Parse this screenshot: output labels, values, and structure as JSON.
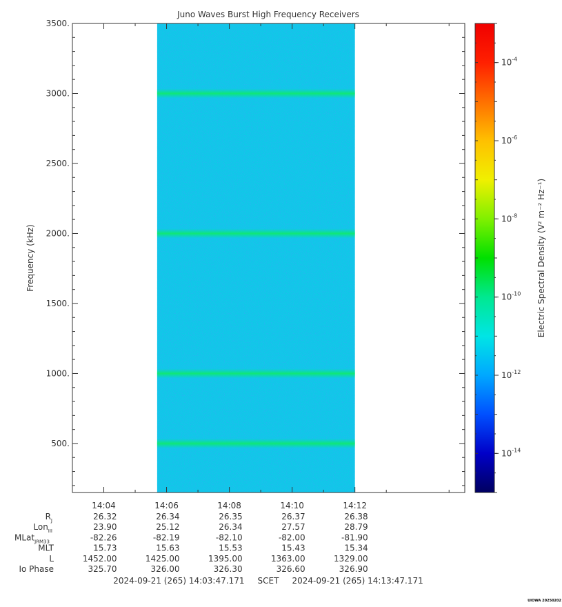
{
  "chart_data": {
    "type": "heatmap",
    "title": "Juno Waves Burst High Frequency Receivers",
    "ylabel": "Frequency (kHz)",
    "ylim": [
      150,
      3500
    ],
    "y_ticks": [
      {
        "value": 3500,
        "label": "3500."
      },
      {
        "value": 3000,
        "label": "3000."
      },
      {
        "value": 2500,
        "label": "2500."
      },
      {
        "value": 2000,
        "label": "2000."
      },
      {
        "value": 1500,
        "label": "1500."
      },
      {
        "value": 1000,
        "label": "1000."
      },
      {
        "value": 500,
        "label": "500."
      }
    ],
    "xlim_minutes": [
      843.0,
      855.5
    ],
    "x_ticks": [
      {
        "value": 844,
        "label": "14:04"
      },
      {
        "value": 846,
        "label": "14:06"
      },
      {
        "value": 848,
        "label": "14:08"
      },
      {
        "value": 850,
        "label": "14:10"
      },
      {
        "value": 852,
        "label": "14:12"
      }
    ],
    "data_time_range": [
      "14:05.7",
      "14:12.0"
    ],
    "narrowband_emissions_khz": [
      500,
      1000,
      2000,
      3000
    ],
    "background_level": "1e-12",
    "colorbar": {
      "label": "Electric Spectral Density (V² m⁻² Hz⁻¹)",
      "log_range": [
        -15,
        -3
      ],
      "ticks": [
        {
          "exp": -4,
          "label": "10",
          "sup": "-4"
        },
        {
          "exp": -6,
          "label": "10",
          "sup": "-6"
        },
        {
          "exp": -8,
          "label": "10",
          "sup": "-8"
        },
        {
          "exp": -10,
          "label": "10",
          "sup": "-10"
        },
        {
          "exp": -12,
          "label": "10",
          "sup": "-12"
        },
        {
          "exp": -14,
          "label": "10",
          "sup": "-14"
        }
      ],
      "colors": [
        "#000060",
        "#0000c8",
        "#0050ff",
        "#00a8ff",
        "#00e5e5",
        "#00e890",
        "#00e000",
        "#80f000",
        "#f0f000",
        "#ffc000",
        "#ff7000",
        "#ff2000",
        "#f00000"
      ]
    },
    "ephemeris": {
      "rows": [
        {
          "name": "R",
          "sub": "J",
          "values": [
            "26.32",
            "26.34",
            "26.35",
            "26.37",
            "26.38"
          ]
        },
        {
          "name": "Lon",
          "sub": "III",
          "values": [
            "23.90",
            "25.12",
            "26.34",
            "27.57",
            "28.79"
          ]
        },
        {
          "name": "MLat",
          "sub": "JRM33",
          "values": [
            "-82.26",
            "-82.19",
            "-82.10",
            "-82.00",
            "-81.90"
          ]
        },
        {
          "name": "MLT",
          "sub": "",
          "values": [
            "15.73",
            "15.63",
            "15.53",
            "15.43",
            "15.34"
          ]
        },
        {
          "name": "L",
          "sub": "",
          "values": [
            "1452.00",
            "1425.00",
            "1395.00",
            "1363.00",
            "1329.00"
          ]
        },
        {
          "name": "Io Phase",
          "sub": "",
          "values": [
            "325.70",
            "326.00",
            "326.30",
            "326.60",
            "326.90"
          ]
        }
      ]
    },
    "time_range_text": "2024-09-21 (265) 14:03:47.171     SCET     2024-09-21 (265) 14:13:47.171",
    "credit": "UIOWA 20250202"
  }
}
